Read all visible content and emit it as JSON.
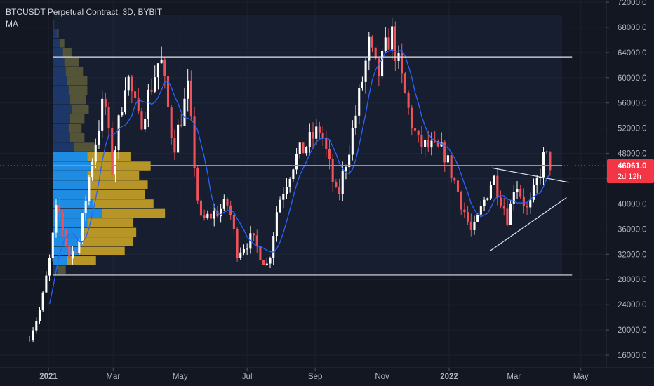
{
  "header": {
    "title": "BTCUSDT Perpetual Contract, 3D, BYBIT",
    "indicator": "MA"
  },
  "colors": {
    "background": "#131722",
    "up": "#ffffff",
    "down": "#f0525a",
    "ma": "#2962ff",
    "grid": "#1c2030",
    "axis_text": "#b2b5be",
    "price_line": "#39b5e0",
    "price_label_bg": "#f23645",
    "vp_up": "#2196f3",
    "vp_down": "#c9a227",
    "vp_up_dim": "#1e3a6e",
    "vp_down_dim": "#5a5a3a"
  },
  "chart_data": {
    "type": "candlestick",
    "y_axis": {
      "min": 14000,
      "max": 72000,
      "ticks": [
        "16000.0",
        "20000.0",
        "24000.0",
        "28000.0",
        "32000.0",
        "36000.0",
        "40000.0",
        "44000.0",
        "48000.0",
        "52000.0",
        "56000.0",
        "60000.0",
        "64000.0",
        "68000.0",
        "72000.0"
      ]
    },
    "x_axis": {
      "labels": [
        {
          "label": "2021",
          "date": "2021-01-01"
        },
        {
          "label": "Mar",
          "date": "2021-03-01"
        },
        {
          "label": "May",
          "date": "2021-05-01"
        },
        {
          "label": "Jul",
          "date": "2021-07-01"
        },
        {
          "label": "Sep",
          "date": "2021-09-01"
        },
        {
          "label": "Nov",
          "date": "2021-11-01"
        },
        {
          "label": "2022",
          "date": "2022-01-01"
        },
        {
          "label": "Mar",
          "date": "2022-03-01"
        },
        {
          "label": "May",
          "date": "2022-05-01"
        }
      ]
    },
    "last_price": {
      "value": "46061.0",
      "countdown": "2d 12h",
      "price": 46061
    },
    "close_anchors": [
      {
        "date": "2020-12-15",
        "close": 19000
      },
      {
        "date": "2020-12-25",
        "close": 23500
      },
      {
        "date": "2021-01-03",
        "close": 32000
      },
      {
        "date": "2021-01-09",
        "close": 40000
      },
      {
        "date": "2021-01-20",
        "close": 31500
      },
      {
        "date": "2021-01-29",
        "close": 34000
      },
      {
        "date": "2021-02-09",
        "close": 46500
      },
      {
        "date": "2021-02-21",
        "close": 57000
      },
      {
        "date": "2021-02-28",
        "close": 45500
      },
      {
        "date": "2021-03-13",
        "close": 61000
      },
      {
        "date": "2021-03-25",
        "close": 52500
      },
      {
        "date": "2021-04-13",
        "close": 63500
      },
      {
        "date": "2021-04-25",
        "close": 49000
      },
      {
        "date": "2021-05-08",
        "close": 58000
      },
      {
        "date": "2021-05-19",
        "close": 37000
      },
      {
        "date": "2021-06-14",
        "close": 40000
      },
      {
        "date": "2021-06-22",
        "close": 32500
      },
      {
        "date": "2021-07-05",
        "close": 34500
      },
      {
        "date": "2021-07-20",
        "close": 30000
      },
      {
        "date": "2021-07-29",
        "close": 40000
      },
      {
        "date": "2021-08-13",
        "close": 47000
      },
      {
        "date": "2021-09-06",
        "close": 52000
      },
      {
        "date": "2021-09-21",
        "close": 40500
      },
      {
        "date": "2021-10-05",
        "close": 51500
      },
      {
        "date": "2021-10-20",
        "close": 65000
      },
      {
        "date": "2021-10-28",
        "close": 60000
      },
      {
        "date": "2021-11-09",
        "close": 67500
      },
      {
        "date": "2021-11-26",
        "close": 54000
      },
      {
        "date": "2021-12-04",
        "close": 49500
      },
      {
        "date": "2021-12-28",
        "close": 48000
      },
      {
        "date": "2022-01-09",
        "close": 42000
      },
      {
        "date": "2022-01-22",
        "close": 35000
      },
      {
        "date": "2022-02-10",
        "close": 44500
      },
      {
        "date": "2022-02-24",
        "close": 37500
      },
      {
        "date": "2022-03-02",
        "close": 44000
      },
      {
        "date": "2022-03-14",
        "close": 38500
      },
      {
        "date": "2022-03-29",
        "close": 47800
      },
      {
        "date": "2022-04-04",
        "close": 46061
      }
    ],
    "annotations": {
      "range_high": 63300,
      "range_low": 28700,
      "triangle_top": {
        "from": {
          "date": "2022-02-09",
          "price": 45700
        },
        "to": {
          "date": "2022-04-20",
          "price": 43400
        }
      },
      "triangle_bottom": {
        "from": {
          "date": "2022-02-07",
          "price": 32500
        },
        "to": {
          "date": "2022-04-18",
          "price": 41000
        }
      }
    },
    "volume_profile": [
      {
        "price": 68500,
        "up": 1,
        "down": 0
      },
      {
        "price": 67000,
        "up": 3,
        "down": 1
      },
      {
        "price": 65500,
        "up": 5,
        "down": 3
      },
      {
        "price": 64000,
        "up": 7,
        "down": 6
      },
      {
        "price": 62500,
        "up": 8,
        "down": 10
      },
      {
        "price": 61000,
        "up": 9,
        "down": 12
      },
      {
        "price": 59500,
        "up": 10,
        "down": 14
      },
      {
        "price": 58000,
        "up": 11,
        "down": 13
      },
      {
        "price": 56500,
        "up": 12,
        "down": 11
      },
      {
        "price": 55000,
        "up": 13,
        "down": 12
      },
      {
        "price": 53500,
        "up": 12,
        "down": 10
      },
      {
        "price": 52000,
        "up": 11,
        "down": 9
      },
      {
        "price": 50500,
        "up": 12,
        "down": 10
      },
      {
        "price": 49000,
        "up": 15,
        "down": 14
      },
      {
        "price": 47500,
        "up": 24,
        "down": 30
      },
      {
        "price": 46000,
        "up": 28,
        "down": 40
      },
      {
        "price": 44500,
        "up": 24,
        "down": 36
      },
      {
        "price": 43000,
        "up": 26,
        "down": 40
      },
      {
        "price": 41500,
        "up": 26,
        "down": 38
      },
      {
        "price": 40000,
        "up": 28,
        "down": 42
      },
      {
        "price": 38500,
        "up": 34,
        "down": 44
      },
      {
        "price": 37000,
        "up": 24,
        "down": 32
      },
      {
        "price": 35500,
        "up": 22,
        "down": 36
      },
      {
        "price": 34000,
        "up": 20,
        "down": 36
      },
      {
        "price": 32500,
        "up": 18,
        "down": 32
      },
      {
        "price": 31000,
        "up": 10,
        "down": 20
      },
      {
        "price": 29500,
        "up": 3,
        "down": 6
      }
    ]
  }
}
